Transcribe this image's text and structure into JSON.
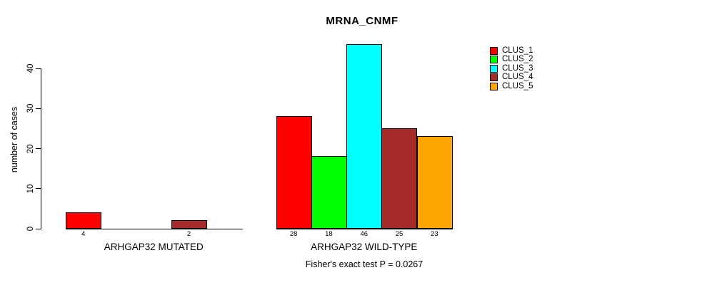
{
  "chart_data": {
    "type": "bar",
    "title": "MRNA_CNMF",
    "ylabel": "number of cases",
    "xlabel": "",
    "annotation": "Fisher's exact test P = 0.0267",
    "ylim": [
      0,
      46
    ],
    "yticks": [
      0,
      10,
      20,
      30,
      40
    ],
    "grid": false,
    "legend_position": "top-right",
    "background_color": "#FFFFFF",
    "axis_color": "#000000",
    "categories": [
      "ARHGAP32 MUTATED",
      "ARHGAP32 WILD-TYPE"
    ],
    "series": [
      {
        "name": "CLUS_1",
        "color": "#FF0000",
        "values": [
          4,
          28
        ]
      },
      {
        "name": "CLUS_2",
        "color": "#00FF00",
        "values": [
          0,
          18
        ]
      },
      {
        "name": "CLUS_3",
        "color": "#00FFFF",
        "values": [
          0,
          46
        ]
      },
      {
        "name": "CLUS_4",
        "color": "#A52A2A",
        "values": [
          2,
          25
        ]
      },
      {
        "name": "CLUS_5",
        "color": "#FFA500",
        "values": [
          0,
          23
        ]
      }
    ],
    "bar_value_labels": {
      "ARHGAP32 MUTATED": [
        "4",
        "2"
      ],
      "ARHGAP32 WILD-TYPE": [
        "28",
        "18",
        "46",
        "25",
        "23"
      ]
    },
    "legend": [
      "CLUS_1",
      "CLUS_2",
      "CLUS_3",
      "CLUS_4",
      "CLUS_5"
    ]
  }
}
